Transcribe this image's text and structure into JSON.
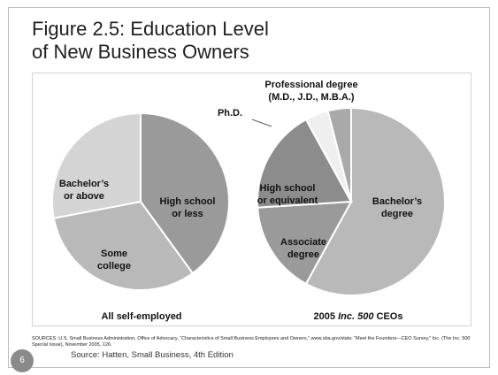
{
  "slide": {
    "title_line1": "Figure 2.5: Education Level",
    "title_line2": "of New Business Owners",
    "sources": "SOURCES: U.S. Small Business Administration, Office of Advocacy, “Characteristics of Small Business Employees and Owners,” www.sba.gov/stats; “Meet the Founders—CEO Survey,” Inc. (The Inc. 500 Special Issue), November 2005, 126.",
    "source_note": "Source: Hatten, Small Business, 4th Edition",
    "page_number": "6"
  },
  "chart_data": [
    {
      "type": "pie",
      "xlabel": "All self-employed",
      "slices": [
        {
          "label": [
            "High school",
            "or less"
          ],
          "value": 40,
          "color": "#9a9a9a"
        },
        {
          "label": [
            "Some",
            "college"
          ],
          "value": 32,
          "color": "#b9b9b9"
        },
        {
          "label": [
            "Bachelor’s",
            "or above"
          ],
          "value": 28,
          "color": "#d4d4d4"
        }
      ]
    },
    {
      "type": "pie",
      "xlabel": "2005 Inc. 500 CEOs",
      "slices": [
        {
          "label": [
            "Bachelor’s",
            "degree"
          ],
          "value": 58,
          "color": "#b9b9b9"
        },
        {
          "label": [
            "Associate",
            "degree"
          ],
          "value": 16,
          "color": "#9a9a9a"
        },
        {
          "label": [
            "High school",
            "or equivalent"
          ],
          "value": 18,
          "color": "#8c8c8c"
        },
        {
          "label": [
            "Ph.D."
          ],
          "value": 4,
          "color": "#efefef"
        },
        {
          "label": [
            "Professional degree",
            "(M.D., J.D., M.B.A.)"
          ],
          "value": 4,
          "color": "#a9a9a9"
        }
      ]
    }
  ]
}
